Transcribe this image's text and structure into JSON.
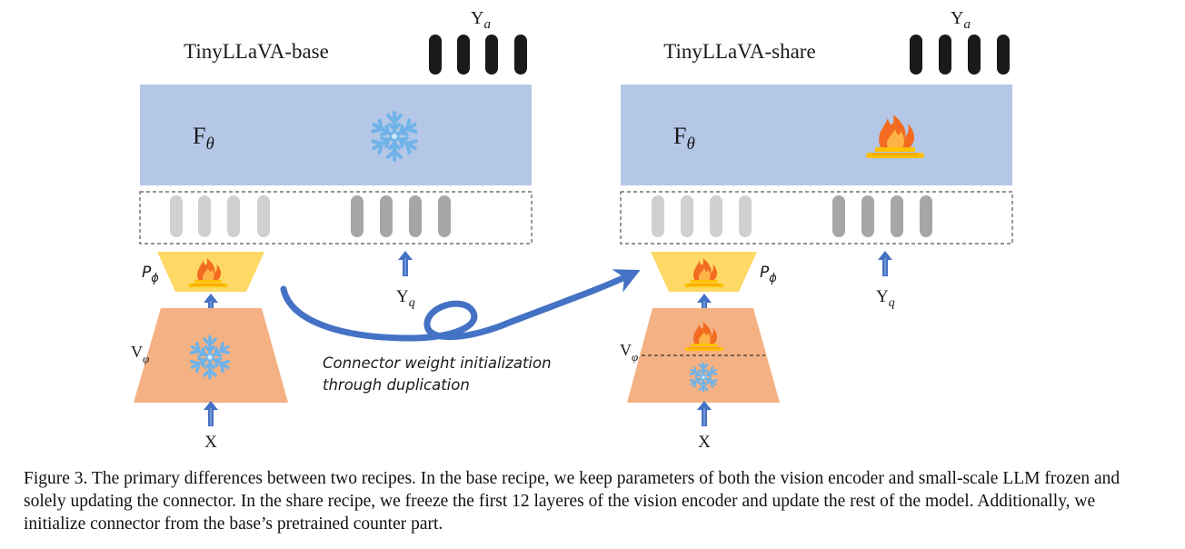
{
  "left_panel": {
    "title": "TinyLLaVA-base",
    "llm_label": "F",
    "llm_sub": "θ",
    "output_label": "Y",
    "output_sub": "a",
    "connector_label": "P",
    "connector_sub": "ϕ",
    "vision_label": "V",
    "vision_sub": "φ",
    "question_label": "Y",
    "question_sub": "q",
    "input_label": "X",
    "llm_state": "snowflake-icon",
    "connector_state": "flame-icon",
    "vision_state": "snowflake-icon"
  },
  "right_panel": {
    "title": "TinyLLaVA-share",
    "llm_label": "F",
    "llm_sub": "θ",
    "output_label": "Y",
    "output_sub": "a",
    "connector_label": "P",
    "connector_sub": "ϕ",
    "vision_label": "V",
    "vision_sub": "φ",
    "question_label": "Y",
    "question_sub": "q",
    "input_label": "X",
    "llm_state": "flame-icon",
    "connector_state": "flame-icon",
    "vision_upper_state": "flame-icon",
    "vision_lower_state": "snowflake-icon"
  },
  "arrow_annotation": {
    "line1": "Connector weight initialization",
    "line2": "through duplication"
  },
  "caption": "Figure 3. The primary differences between two recipes. In the base recipe, we keep parameters of both the vision encoder and small-scale LLM frozen and solely updating the connector. In the share recipe, we freeze the first 12 layeres of the vision encoder and update the rest of the model. Additionally, we initialize connector from the base’s pretrained counter part.",
  "colors": {
    "llm_block": "#b4c7e7",
    "connector": "#ffd966",
    "vision_encoder": "#f4b183",
    "token_dark": "#1a1a1a",
    "token_light": "#d0d0d0",
    "token_mid": "#a6a6a6",
    "arrow_blue": "#4472c4",
    "snowflake": "#6fb3e8",
    "flame": "#f26b21",
    "burner": "#ffc000"
  }
}
